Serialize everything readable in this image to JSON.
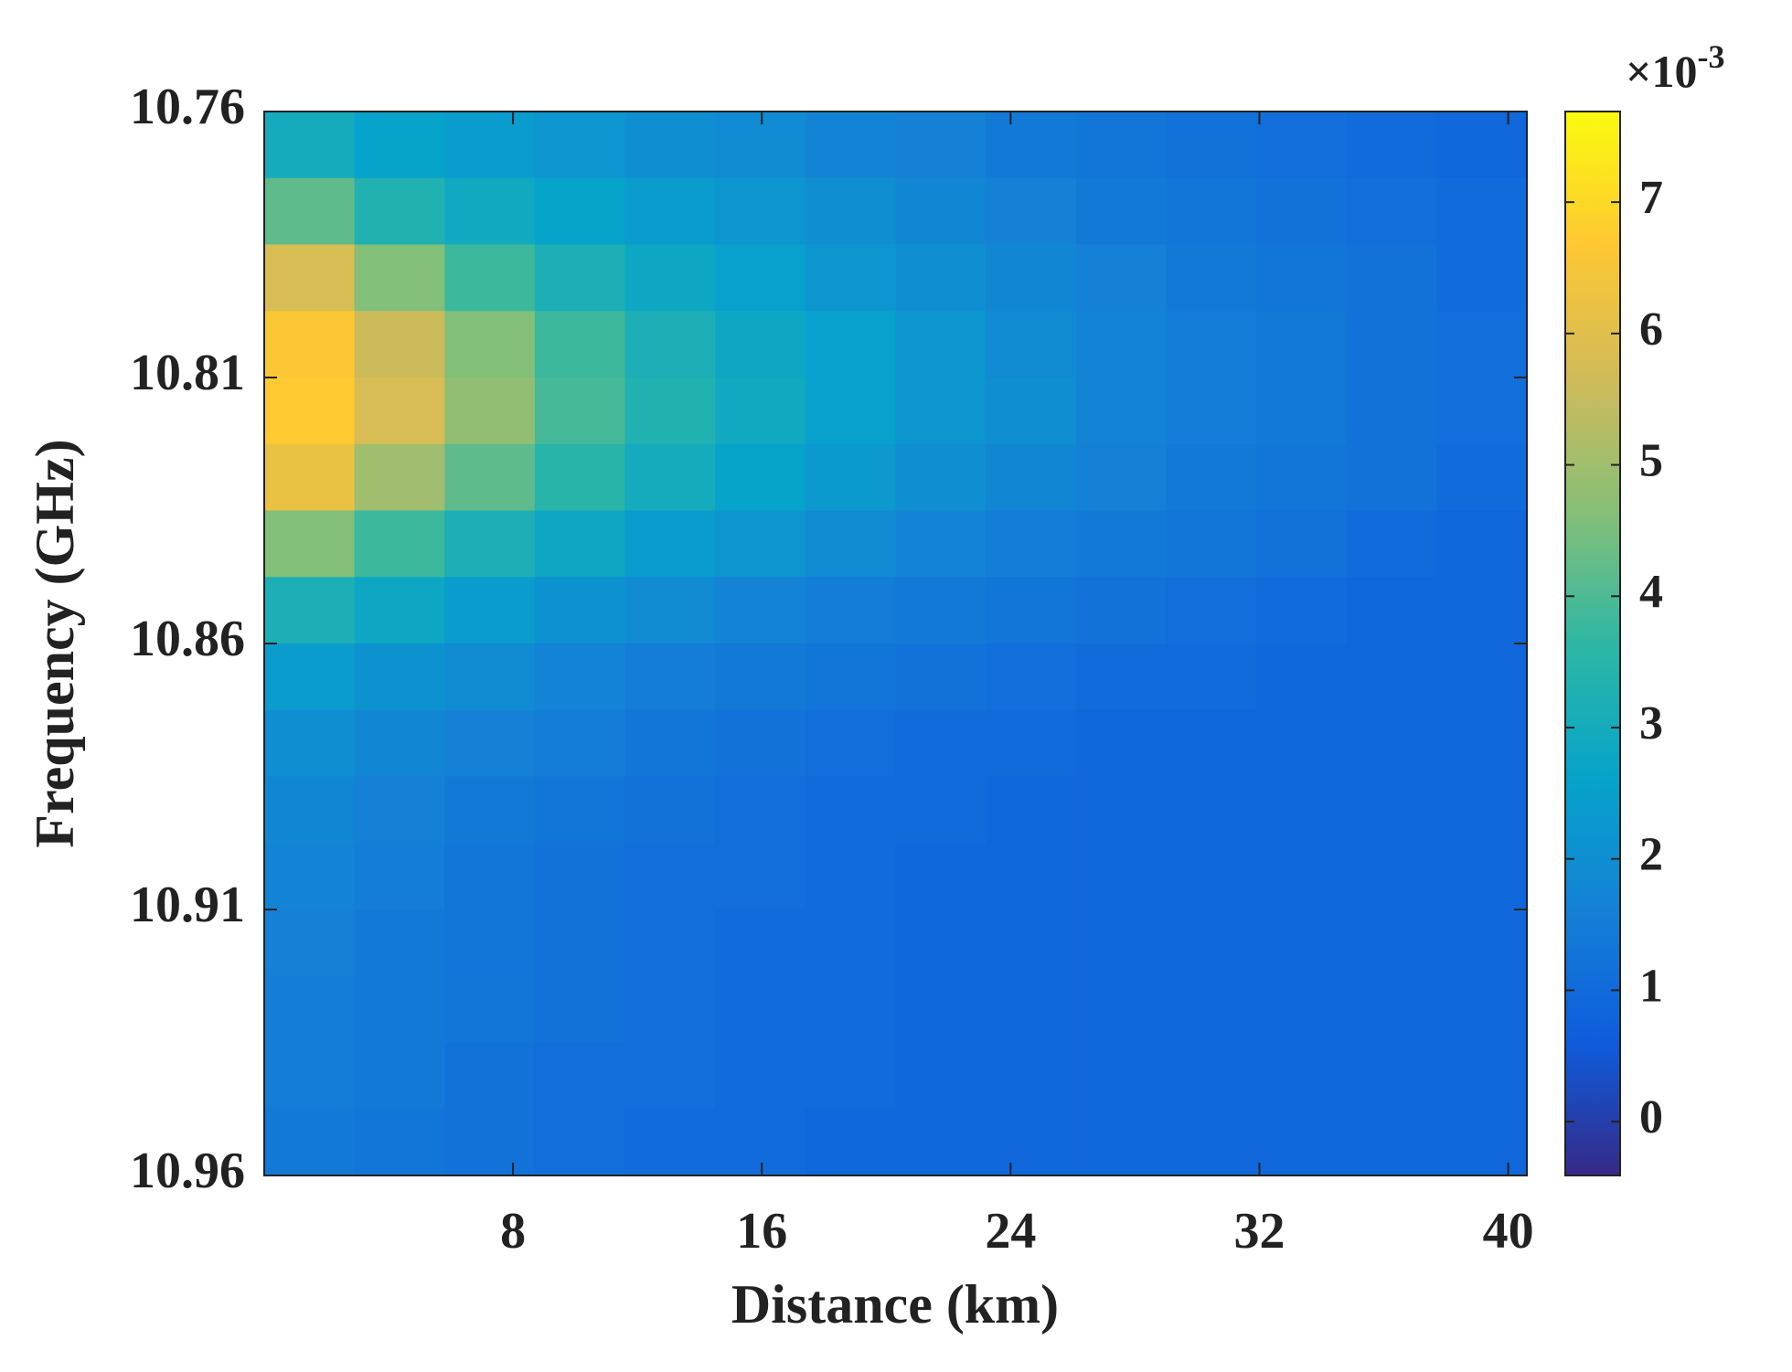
{
  "chart_data": {
    "type": "heatmap",
    "x_label": "Distance (km)",
    "y_label": "Frequency (GHz)",
    "colormap": "parula",
    "colorbar_multiplier": "×10",
    "colorbar_exponent": "-3",
    "x_edges": [
      0,
      2.9,
      5.8,
      8.7,
      11.6,
      14.5,
      17.4,
      20.3,
      23.2,
      26.1,
      29,
      31.9,
      34.8,
      37.7,
      40.6
    ],
    "y_edges": [
      10.76,
      10.7725,
      10.785,
      10.7975,
      10.81,
      10.8225,
      10.835,
      10.8475,
      10.86,
      10.8725,
      10.885,
      10.8975,
      10.91,
      10.9225,
      10.935,
      10.9475,
      10.96
    ],
    "values": [
      [
        3.0,
        2.6,
        2.4,
        2.2,
        2.0,
        1.9,
        1.7,
        1.6,
        1.4,
        1.3,
        1.2,
        1.1,
        1.0,
        0.9
      ],
      [
        4.2,
        3.3,
        2.9,
        2.6,
        2.4,
        2.2,
        2.0,
        1.8,
        1.6,
        1.4,
        1.3,
        1.2,
        1.1,
        1.0
      ],
      [
        5.8,
        4.6,
        3.8,
        3.2,
        2.8,
        2.5,
        2.2,
        2.0,
        1.8,
        1.6,
        1.4,
        1.3,
        1.2,
        1.0
      ],
      [
        6.6,
        5.6,
        4.6,
        3.8,
        3.2,
        2.8,
        2.5,
        2.2,
        1.9,
        1.7,
        1.5,
        1.4,
        1.2,
        1.1
      ],
      [
        6.7,
        5.8,
        4.8,
        3.9,
        3.3,
        2.9,
        2.5,
        2.2,
        2.0,
        1.7,
        1.5,
        1.4,
        1.2,
        1.1
      ],
      [
        6.2,
        5.0,
        4.2,
        3.5,
        3.0,
        2.6,
        2.3,
        2.0,
        1.8,
        1.6,
        1.4,
        1.3,
        1.2,
        1.0
      ],
      [
        4.6,
        3.8,
        3.2,
        2.8,
        2.4,
        2.2,
        1.9,
        1.7,
        1.5,
        1.4,
        1.3,
        1.2,
        1.0,
        0.9
      ],
      [
        3.2,
        2.8,
        2.4,
        2.1,
        1.9,
        1.7,
        1.5,
        1.4,
        1.3,
        1.2,
        1.1,
        1.0,
        0.9,
        0.9
      ],
      [
        2.4,
        2.1,
        1.9,
        1.7,
        1.5,
        1.4,
        1.3,
        1.2,
        1.1,
        1.0,
        1.0,
        0.9,
        0.9,
        0.9
      ],
      [
        2.0,
        1.8,
        1.6,
        1.5,
        1.3,
        1.2,
        1.1,
        1.0,
        1.0,
        0.9,
        0.9,
        0.9,
        0.9,
        0.9
      ],
      [
        1.8,
        1.6,
        1.4,
        1.3,
        1.2,
        1.1,
        1.0,
        1.0,
        0.9,
        0.9,
        0.9,
        0.9,
        0.9,
        0.9
      ],
      [
        1.7,
        1.5,
        1.3,
        1.2,
        1.1,
        1.1,
        1.0,
        0.9,
        0.9,
        0.9,
        0.9,
        0.9,
        0.9,
        0.9
      ],
      [
        1.6,
        1.4,
        1.3,
        1.2,
        1.1,
        1.0,
        1.0,
        0.9,
        0.9,
        0.9,
        0.9,
        0.9,
        0.9,
        0.9
      ],
      [
        1.5,
        1.4,
        1.3,
        1.2,
        1.1,
        1.0,
        1.0,
        0.9,
        0.9,
        0.9,
        0.9,
        0.9,
        0.9,
        0.9
      ],
      [
        1.5,
        1.4,
        1.2,
        1.1,
        1.1,
        1.0,
        1.0,
        0.9,
        0.9,
        0.9,
        0.9,
        0.9,
        0.9,
        0.9
      ],
      [
        1.4,
        1.3,
        1.2,
        1.1,
        1.0,
        1.0,
        0.9,
        0.9,
        0.9,
        0.9,
        0.9,
        0.9,
        0.9,
        0.9
      ]
    ],
    "xlim": [
      0,
      40.6
    ],
    "xticks": [
      8,
      16,
      24,
      32,
      40
    ],
    "ylim": [
      10.96,
      10.76
    ],
    "yticks": [
      10.76,
      10.81,
      10.86,
      10.91,
      10.96
    ],
    "clim": [
      -0.41,
      7.69
    ],
    "cticks": [
      0,
      1,
      2,
      3,
      4,
      5,
      6,
      7
    ]
  }
}
